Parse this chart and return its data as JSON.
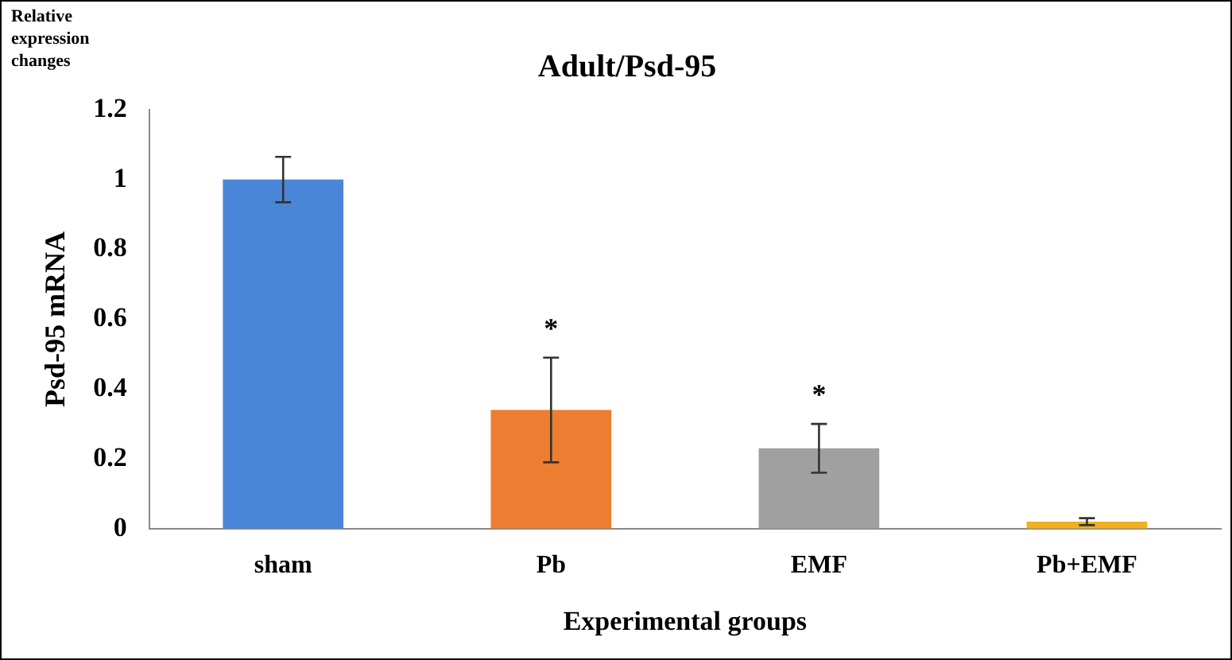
{
  "chart_data": {
    "type": "bar",
    "title": "Adult/Psd-95",
    "xlabel": "Experimental groups",
    "ylabel": "Psd-95 mRNA",
    "categories": [
      "sham",
      "Pb",
      "EMF",
      "Pb+EMF"
    ],
    "values": [
      1.0,
      0.34,
      0.23,
      0.02
    ],
    "errors": [
      0.065,
      0.15,
      0.07,
      0.01
    ],
    "colors": [
      "#4a86d8",
      "#ed7d31",
      "#a0a0a0",
      "#f0b020"
    ],
    "ylim": [
      0,
      1.2
    ],
    "yticks": [
      0,
      0.2,
      0.4,
      0.6,
      0.8,
      1,
      1.2
    ],
    "grid": false,
    "legend": false,
    "annotations": [
      "Relative expression changes",
      "*",
      "*"
    ]
  }
}
